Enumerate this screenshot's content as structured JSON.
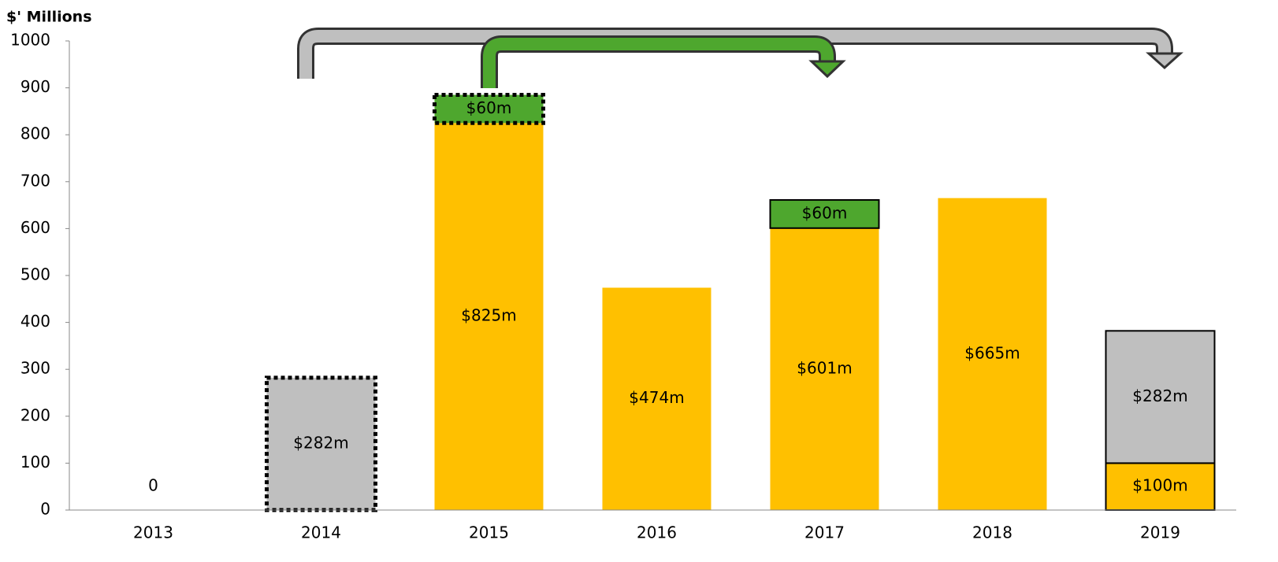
{
  "chart_data": {
    "type": "bar",
    "stacked": true,
    "y_axis_label": "$' Millions",
    "categories": [
      "2013",
      "2014",
      "2015",
      "2016",
      "2017",
      "2018",
      "2019"
    ],
    "series": [
      {
        "color": "#ffc000",
        "values": [
          0,
          null,
          825,
          474,
          601,
          665,
          100
        ],
        "value_labels": [
          "0",
          null,
          "$825m",
          "$474m",
          "$601m",
          "$665m",
          "$100m"
        ],
        "border": [
          null,
          null,
          null,
          null,
          null,
          null,
          "solid"
        ]
      },
      {
        "color": "#4ea72e",
        "values": [
          null,
          null,
          60,
          null,
          60,
          null,
          null
        ],
        "value_labels": [
          null,
          null,
          "$60m",
          null,
          "$60m",
          null,
          null
        ],
        "border": [
          null,
          null,
          "dotted",
          null,
          "solid",
          null,
          null
        ]
      },
      {
        "color": "#bfbfbf",
        "values": [
          null,
          282,
          null,
          null,
          null,
          null,
          282
        ],
        "value_labels": [
          null,
          "$282m",
          null,
          null,
          null,
          null,
          "$282m"
        ],
        "border": [
          null,
          "dotted",
          null,
          null,
          null,
          null,
          "solid"
        ]
      }
    ],
    "ylim": [
      0,
      1000
    ],
    "yticks": [
      0,
      100,
      200,
      300,
      400,
      500,
      600,
      700,
      800,
      900,
      1000
    ],
    "grid": false
  }
}
